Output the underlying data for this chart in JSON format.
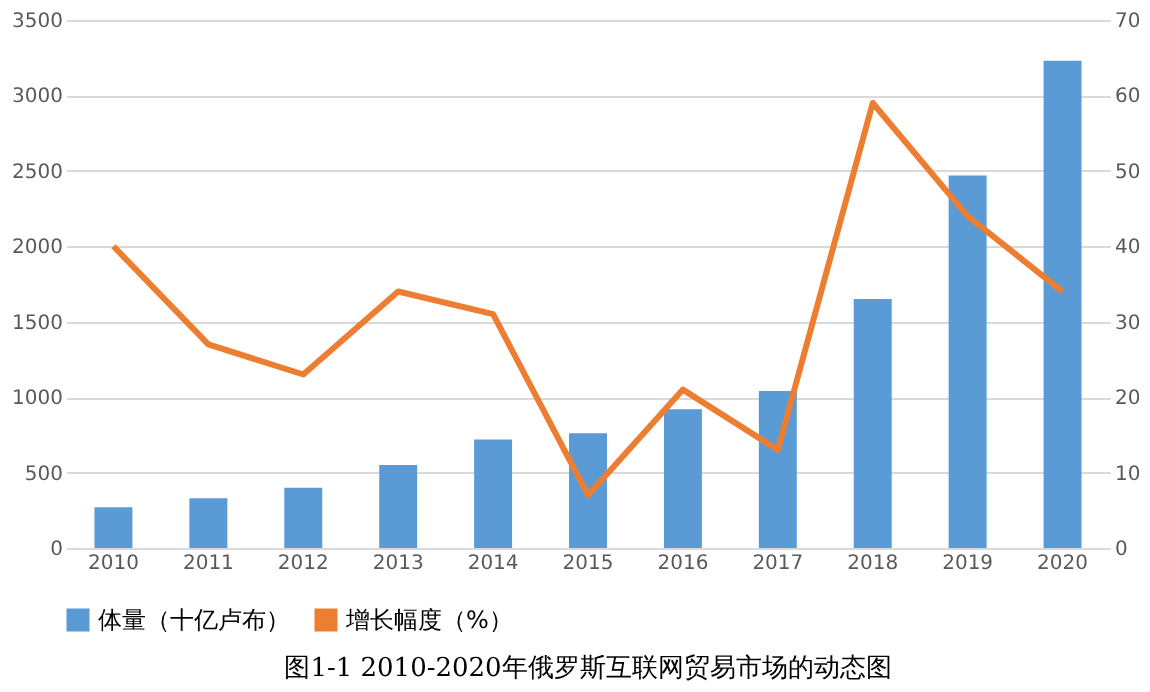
{
  "chart_data": {
    "type": "bar",
    "categories": [
      "2010",
      "2011",
      "2012",
      "2013",
      "2014",
      "2015",
      "2016",
      "2017",
      "2018",
      "2019",
      "2020"
    ],
    "series": [
      {
        "name": "体量（十亿卢布）",
        "color": "#5b9bd5",
        "values": [
          270,
          330,
          400,
          550,
          720,
          760,
          920,
          1040,
          1650,
          2470,
          3230
        ]
      },
      {
        "name": "增长幅度（%）",
        "type": "line",
        "axis": "y2",
        "color": "#ed7d31",
        "values": [
          40,
          27,
          23,
          34,
          31,
          7,
          21,
          13,
          59,
          44,
          34
        ]
      }
    ],
    "ylim": [
      0,
      3500
    ],
    "yticks": [
      0,
      500,
      1000,
      1500,
      2000,
      2500,
      3000,
      3500
    ],
    "y2lim": [
      0,
      70
    ],
    "y2ticks": [
      0,
      10,
      20,
      30,
      40,
      50,
      60,
      70
    ],
    "grid": "y",
    "legend": "bottom",
    "annotations": [
      "图1-1    2010-2020年俄罗斯互联网贸易市场的动态图"
    ]
  }
}
